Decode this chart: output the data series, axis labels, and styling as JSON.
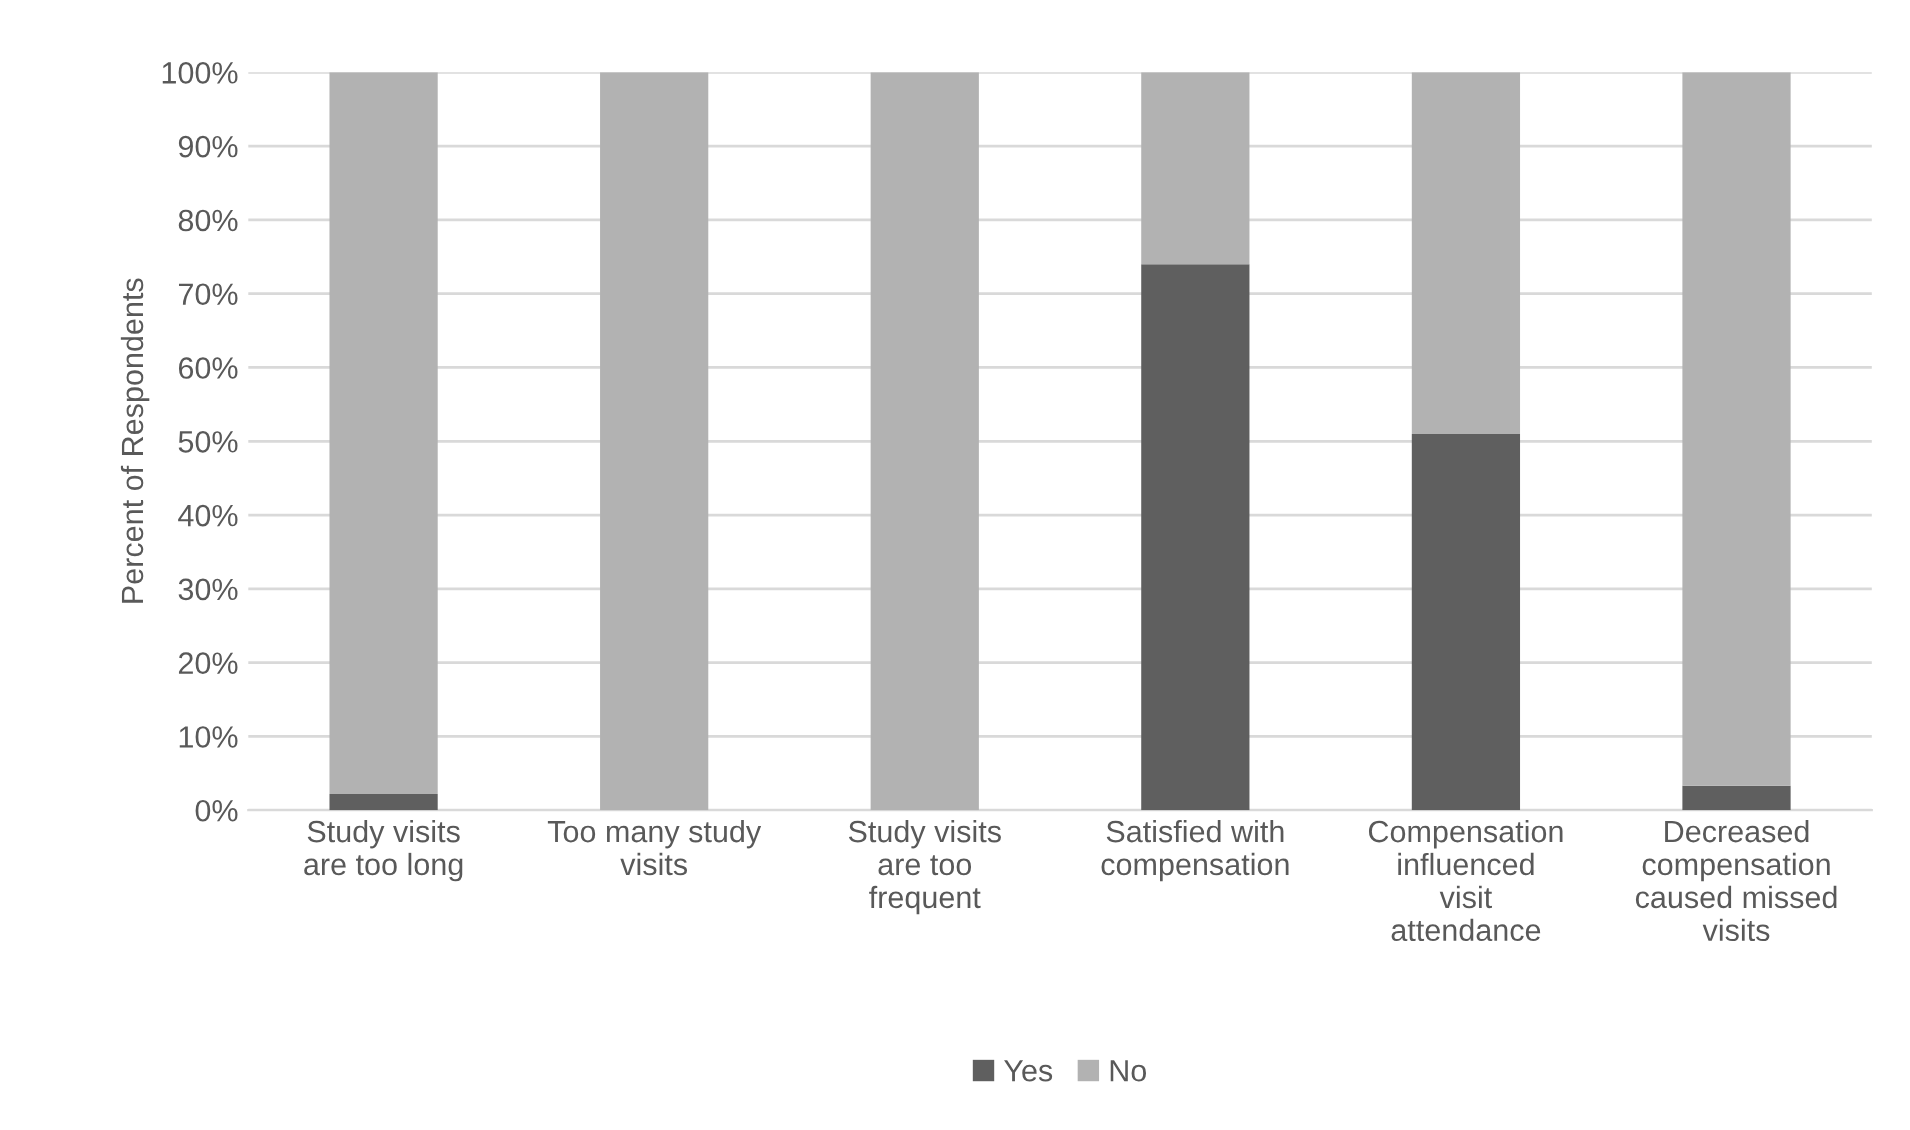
{
  "chart_data": {
    "type": "bar",
    "stacked": true,
    "ylabel": "Percent of Respondents",
    "categories": [
      "Study visits are too long",
      "Too many study visits",
      "Study visits are too frequent",
      "Satisfied with compensation",
      "Compensation influenced visit attendance",
      "Decreased compensation caused missed visits"
    ],
    "series": [
      {
        "name": "Yes",
        "color": "#5f5f5f",
        "values": [
          2.2,
          0,
          0,
          74,
          51,
          3.3
        ]
      },
      {
        "name": "No",
        "color": "#b2b2b2",
        "values": [
          97.8,
          100,
          100,
          26,
          49,
          96.7
        ]
      }
    ],
    "ylim": [
      0,
      100
    ],
    "yticks": [
      {
        "value": 0,
        "label": "0%"
      },
      {
        "value": 10,
        "label": "10%"
      },
      {
        "value": 20,
        "label": "20%"
      },
      {
        "value": 30,
        "label": "30%"
      },
      {
        "value": 40,
        "label": "40%"
      },
      {
        "value": 50,
        "label": "50%"
      },
      {
        "value": 60,
        "label": "60%"
      },
      {
        "value": 70,
        "label": "70%"
      },
      {
        "value": 80,
        "label": "80%"
      },
      {
        "value": 90,
        "label": "90%"
      },
      {
        "value": 100,
        "label": "100%"
      }
    ],
    "grid": "y",
    "legend": "bottom"
  }
}
